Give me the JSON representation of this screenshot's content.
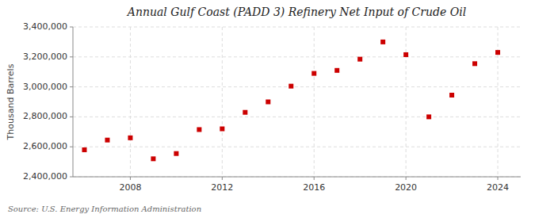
{
  "chart_data": {
    "type": "scatter",
    "title": "Annual Gulf Coast (PADD 3) Refinery Net Input of Crude Oil",
    "y_label": "Thousand Barrels",
    "annotations": [
      "Source: U.S. Energy Information Administration"
    ],
    "x": [
      2006,
      2007,
      2008,
      2009,
      2010,
      2011,
      2012,
      2013,
      2014,
      2015,
      2016,
      2017,
      2018,
      2019,
      2020,
      2021,
      2022,
      2023,
      2024
    ],
    "values": [
      2580000,
      2645000,
      2660000,
      2520000,
      2555000,
      2715000,
      2720000,
      2830000,
      2900000,
      3005000,
      3090000,
      3110000,
      3185000,
      3300000,
      3215000,
      2800000,
      2945000,
      3155000,
      3230000
    ],
    "color": "#cc0000",
    "marker": "square",
    "xlim": [
      2005.5,
      2025.0
    ],
    "xticks": [
      2008,
      2012,
      2016,
      2020,
      2024
    ],
    "ylim": [
      2400000,
      3400000
    ],
    "yticks": [
      {
        "value": 2400000,
        "label": "2,400,000"
      },
      {
        "value": 2600000,
        "label": "2,600,000"
      },
      {
        "value": 2800000,
        "label": "2,800,000"
      },
      {
        "value": 3000000,
        "label": "3,000,000"
      },
      {
        "value": 3200000,
        "label": "3,200,000"
      },
      {
        "value": 3400000,
        "label": "3,400,000"
      }
    ],
    "grid": true
  }
}
